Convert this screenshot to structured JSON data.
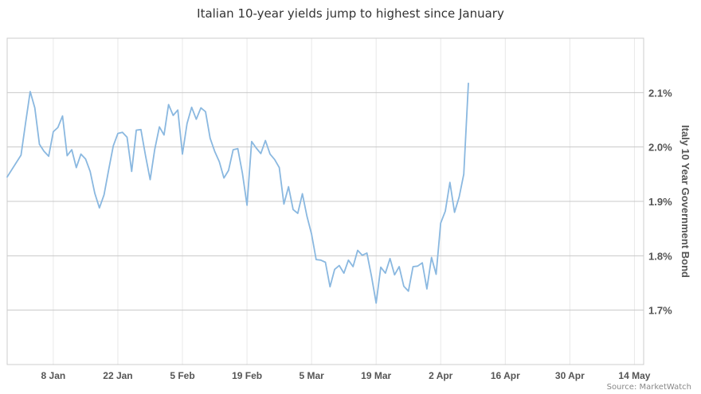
{
  "chart_data": {
    "type": "line",
    "title": "Italian 10-year yields jump to highest since January",
    "ylabel": "Italy 10 Year Government Bond",
    "xlabel": "",
    "source": "Source: MarketWatch",
    "x_tick_labels": [
      "8 Jan",
      "22 Jan",
      "5 Feb",
      "19 Feb",
      "5 Mar",
      "19 Mar",
      "2 Apr",
      "16 Apr",
      "30 Apr",
      "14 May"
    ],
    "x_tick_dates": [
      "2018-01-08",
      "2018-01-22",
      "2018-02-05",
      "2018-02-19",
      "2018-03-05",
      "2018-03-19",
      "2018-04-02",
      "2018-04-16",
      "2018-04-30",
      "2018-05-14"
    ],
    "y_tick_labels": [
      "1.7%",
      "1.8%",
      "1.9%",
      "2.0%",
      "2.1%"
    ],
    "y_tick_values": [
      1.7,
      1.8,
      1.9,
      2.0,
      2.1
    ],
    "xlim": [
      "2017-12-29",
      "2018-05-16"
    ],
    "ylim": [
      1.6,
      2.2
    ],
    "grid": true,
    "line_color": "#8ab8e0",
    "series": [
      {
        "name": "",
        "points": [
          [
            "2017-12-29",
            1.945
          ],
          [
            "2018-01-01",
            1.985
          ],
          [
            "2018-01-02",
            2.045
          ],
          [
            "2018-01-03",
            2.102
          ],
          [
            "2018-01-04",
            2.072
          ],
          [
            "2018-01-05",
            2.005
          ],
          [
            "2018-01-06",
            1.992
          ],
          [
            "2018-01-07",
            1.983
          ],
          [
            "2018-01-08",
            2.028
          ],
          [
            "2018-01-09",
            2.036
          ],
          [
            "2018-01-10",
            2.057
          ],
          [
            "2018-01-11",
            1.984
          ],
          [
            "2018-01-12",
            1.995
          ],
          [
            "2018-01-13",
            1.962
          ],
          [
            "2018-01-14",
            1.987
          ],
          [
            "2018-01-15",
            1.978
          ],
          [
            "2018-01-16",
            1.955
          ],
          [
            "2018-01-17",
            1.915
          ],
          [
            "2018-01-18",
            1.888
          ],
          [
            "2018-01-19",
            1.912
          ],
          [
            "2018-01-20",
            1.958
          ],
          [
            "2018-01-21",
            2.002
          ],
          [
            "2018-01-22",
            2.025
          ],
          [
            "2018-01-23",
            2.027
          ],
          [
            "2018-01-24",
            2.018
          ],
          [
            "2018-01-25",
            1.955
          ],
          [
            "2018-01-26",
            2.031
          ],
          [
            "2018-01-27",
            2.032
          ],
          [
            "2018-01-28",
            1.984
          ],
          [
            "2018-01-29",
            1.94
          ],
          [
            "2018-01-30",
            1.996
          ],
          [
            "2018-01-31",
            2.037
          ],
          [
            "2018-02-01",
            2.022
          ],
          [
            "2018-02-02",
            2.078
          ],
          [
            "2018-02-03",
            2.058
          ],
          [
            "2018-02-04",
            2.068
          ],
          [
            "2018-02-05",
            1.987
          ],
          [
            "2018-02-06",
            2.043
          ],
          [
            "2018-02-07",
            2.073
          ],
          [
            "2018-02-08",
            2.051
          ],
          [
            "2018-02-09",
            2.072
          ],
          [
            "2018-02-10",
            2.065
          ],
          [
            "2018-02-11",
            2.016
          ],
          [
            "2018-02-12",
            1.992
          ],
          [
            "2018-02-13",
            1.973
          ],
          [
            "2018-02-14",
            1.943
          ],
          [
            "2018-02-15",
            1.957
          ],
          [
            "2018-02-16",
            1.995
          ],
          [
            "2018-02-17",
            1.997
          ],
          [
            "2018-02-18",
            1.952
          ],
          [
            "2018-02-19",
            1.893
          ],
          [
            "2018-02-20",
            2.01
          ],
          [
            "2018-02-21",
            1.998
          ],
          [
            "2018-02-22",
            1.988
          ],
          [
            "2018-02-23",
            2.012
          ],
          [
            "2018-02-24",
            1.987
          ],
          [
            "2018-02-25",
            1.977
          ],
          [
            "2018-02-26",
            1.962
          ],
          [
            "2018-02-27",
            1.895
          ],
          [
            "2018-02-28",
            1.927
          ],
          [
            "2018-03-01",
            1.885
          ],
          [
            "2018-03-02",
            1.878
          ],
          [
            "2018-03-03",
            1.914
          ],
          [
            "2018-03-04",
            1.873
          ],
          [
            "2018-03-05",
            1.84
          ],
          [
            "2018-03-06",
            1.793
          ],
          [
            "2018-03-07",
            1.792
          ],
          [
            "2018-03-08",
            1.788
          ],
          [
            "2018-03-09",
            1.743
          ],
          [
            "2018-03-10",
            1.775
          ],
          [
            "2018-03-11",
            1.782
          ],
          [
            "2018-03-12",
            1.768
          ],
          [
            "2018-03-13",
            1.792
          ],
          [
            "2018-03-14",
            1.78
          ],
          [
            "2018-03-15",
            1.81
          ],
          [
            "2018-03-16",
            1.801
          ],
          [
            "2018-03-17",
            1.805
          ],
          [
            "2018-03-18",
            1.762
          ],
          [
            "2018-03-19",
            1.713
          ],
          [
            "2018-03-20",
            1.779
          ],
          [
            "2018-03-21",
            1.768
          ],
          [
            "2018-03-22",
            1.795
          ],
          [
            "2018-03-23",
            1.765
          ],
          [
            "2018-03-24",
            1.78
          ],
          [
            "2018-03-25",
            1.744
          ],
          [
            "2018-03-26",
            1.735
          ],
          [
            "2018-03-27",
            1.78
          ],
          [
            "2018-03-28",
            1.781
          ],
          [
            "2018-03-29",
            1.787
          ],
          [
            "2018-03-30",
            1.739
          ],
          [
            "2018-03-31",
            1.797
          ],
          [
            "2018-04-01",
            1.766
          ],
          [
            "2018-04-02",
            1.86
          ],
          [
            "2018-04-03",
            1.882
          ],
          [
            "2018-04-04",
            1.935
          ],
          [
            "2018-04-05",
            1.88
          ],
          [
            "2018-04-06",
            1.908
          ],
          [
            "2018-04-07",
            1.95
          ],
          [
            "2018-04-08",
            2.117
          ]
        ]
      }
    ]
  }
}
